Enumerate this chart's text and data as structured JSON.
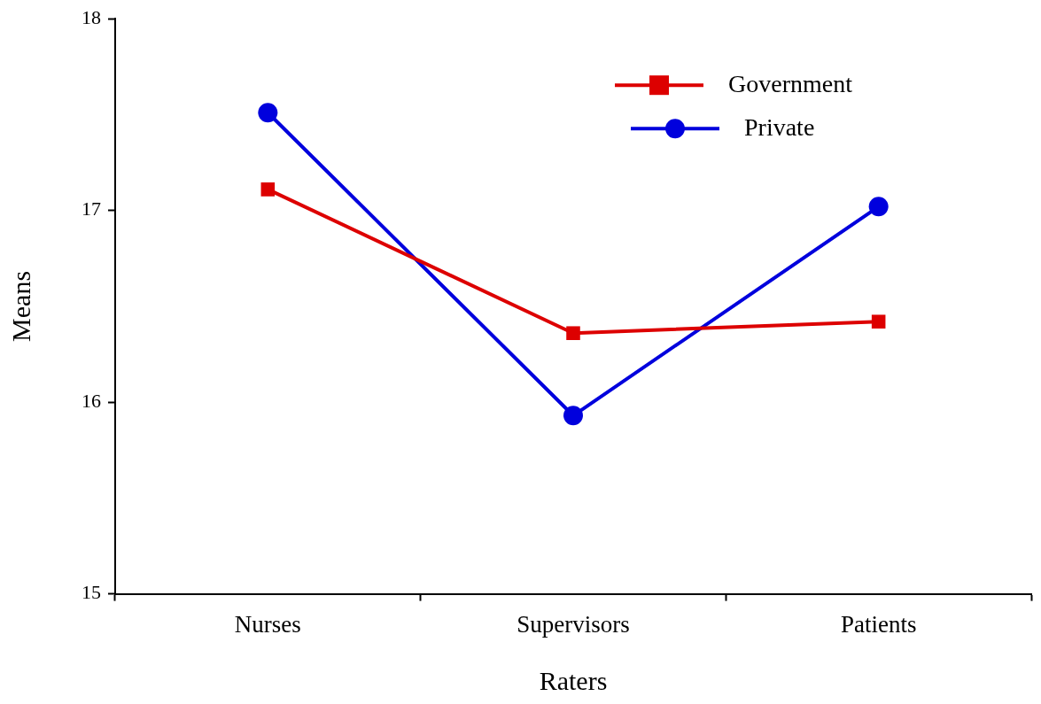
{
  "chart_data": {
    "type": "line",
    "xlabel": "Raters",
    "ylabel": "Means",
    "categories": [
      "Nurses",
      "Supervisors",
      "Patients"
    ],
    "series": [
      {
        "name": "Government",
        "color": "#dd0000",
        "marker": "square",
        "values": [
          17.11,
          16.36,
          16.42
        ]
      },
      {
        "name": "Private",
        "color": "#0000dd",
        "marker": "circle",
        "values": [
          17.51,
          15.93,
          17.02
        ]
      }
    ],
    "ylim": [
      15,
      18
    ],
    "yticks": [
      15,
      16,
      17,
      18
    ],
    "grid": false,
    "legend": "top right",
    "line_style": "solid"
  }
}
